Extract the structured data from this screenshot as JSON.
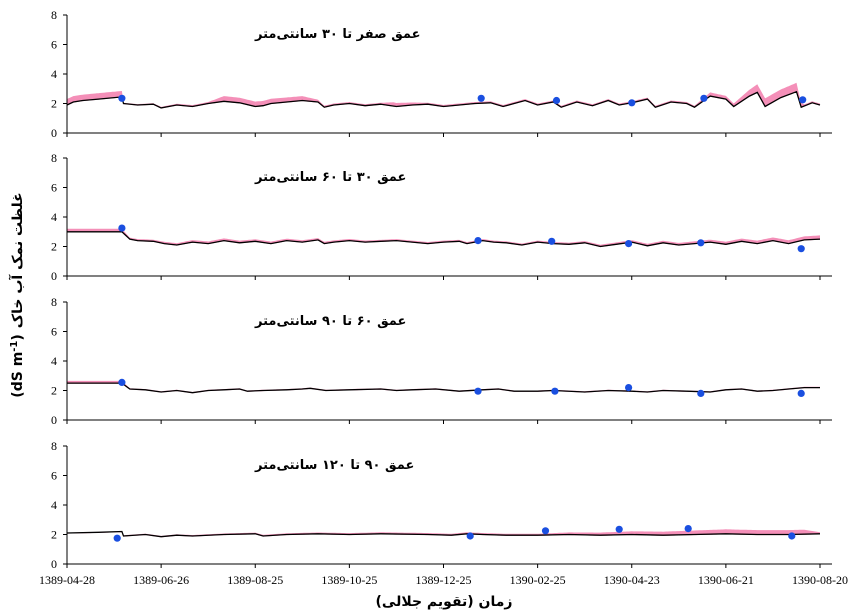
{
  "chart_data": {
    "type": "line",
    "xlabel": "زمان (تقویم جلالی)",
    "ylabel": "غلظت نمک آب خاک",
    "ylabel_unit": "(dS m",
    "ylabel_unit_sup": "-1",
    "ylabel_unit_close": ")",
    "x_tick_labels": [
      "1389-04-28",
      "1389-06-26",
      "1389-08-25",
      "1389-10-25",
      "1389-12-25",
      "1390-02-25",
      "1390-04-23",
      "1390-06-21",
      "1390-08-20"
    ],
    "x_range_days": [
      0,
      480
    ],
    "ylim": [
      0,
      8
    ],
    "y_ticks": [
      "0",
      "2",
      "4",
      "6",
      "8"
    ],
    "colors": {
      "simulated": "#000000",
      "band": "#f48fb8",
      "observed": "#1a4fe0"
    },
    "panels": [
      {
        "title": "عمق صفر تا ۳۰ سانتی‌متر",
        "simulated": [
          [
            0,
            1.9
          ],
          [
            4,
            2.1
          ],
          [
            10,
            2.2
          ],
          [
            20,
            2.3
          ],
          [
            35,
            2.45
          ],
          [
            36,
            2.0
          ],
          [
            45,
            1.9
          ],
          [
            55,
            1.95
          ],
          [
            60,
            1.7
          ],
          [
            70,
            1.9
          ],
          [
            80,
            1.8
          ],
          [
            90,
            2.0
          ],
          [
            100,
            2.15
          ],
          [
            110,
            2.05
          ],
          [
            120,
            1.8
          ],
          [
            125,
            1.85
          ],
          [
            130,
            2.0
          ],
          [
            140,
            2.1
          ],
          [
            150,
            2.2
          ],
          [
            160,
            2.1
          ],
          [
            164,
            1.75
          ],
          [
            170,
            1.9
          ],
          [
            180,
            2.0
          ],
          [
            190,
            1.85
          ],
          [
            200,
            1.95
          ],
          [
            210,
            1.8
          ],
          [
            220,
            1.9
          ],
          [
            230,
            1.95
          ],
          [
            240,
            1.8
          ],
          [
            250,
            1.9
          ],
          [
            260,
            2.0
          ],
          [
            270,
            2.05
          ],
          [
            278,
            1.8
          ],
          [
            285,
            2.0
          ],
          [
            292,
            2.2
          ],
          [
            300,
            1.9
          ],
          [
            310,
            2.1
          ],
          [
            315,
            1.75
          ],
          [
            325,
            2.1
          ],
          [
            335,
            1.85
          ],
          [
            345,
            2.2
          ],
          [
            352,
            1.9
          ],
          [
            360,
            2.05
          ],
          [
            370,
            2.3
          ],
          [
            375,
            1.75
          ],
          [
            385,
            2.1
          ],
          [
            395,
            2.0
          ],
          [
            400,
            1.75
          ],
          [
            410,
            2.5
          ],
          [
            420,
            2.3
          ],
          [
            425,
            1.8
          ],
          [
            435,
            2.5
          ],
          [
            440,
            2.75
          ],
          [
            445,
            1.8
          ],
          [
            455,
            2.4
          ],
          [
            465,
            2.8
          ],
          [
            468,
            1.75
          ],
          [
            475,
            2.05
          ],
          [
            480,
            1.9
          ]
        ],
        "band_extra": [
          [
            0,
            0.4
          ],
          [
            35,
            0.4
          ],
          [
            36,
            0.05
          ],
          [
            90,
            0.1
          ],
          [
            100,
            0.35
          ],
          [
            150,
            0.3
          ],
          [
            164,
            0.1
          ],
          [
            200,
            0.1
          ],
          [
            208,
            0.25
          ],
          [
            230,
            0.1
          ],
          [
            300,
            0.1
          ],
          [
            400,
            0.1
          ],
          [
            410,
            0.25
          ],
          [
            425,
            0.2
          ],
          [
            440,
            0.55
          ],
          [
            455,
            0.55
          ],
          [
            465,
            0.6
          ],
          [
            470,
            0.1
          ],
          [
            480,
            0.1
          ]
        ],
        "observed": [
          [
            35,
            2.35
          ],
          [
            264,
            2.35
          ],
          [
            312,
            2.2
          ],
          [
            360,
            2.05
          ],
          [
            406,
            2.35
          ],
          [
            469,
            2.25
          ]
        ]
      },
      {
        "title": "عمق ۳۰ تا ۶۰ سانتی‌متر",
        "simulated": [
          [
            0,
            3.0
          ],
          [
            35,
            3.0
          ],
          [
            40,
            2.5
          ],
          [
            45,
            2.4
          ],
          [
            55,
            2.35
          ],
          [
            62,
            2.2
          ],
          [
            70,
            2.1
          ],
          [
            80,
            2.3
          ],
          [
            90,
            2.2
          ],
          [
            100,
            2.4
          ],
          [
            110,
            2.25
          ],
          [
            120,
            2.35
          ],
          [
            130,
            2.2
          ],
          [
            140,
            2.4
          ],
          [
            150,
            2.3
          ],
          [
            160,
            2.45
          ],
          [
            164,
            2.2
          ],
          [
            170,
            2.3
          ],
          [
            180,
            2.4
          ],
          [
            190,
            2.3
          ],
          [
            200,
            2.35
          ],
          [
            210,
            2.4
          ],
          [
            220,
            2.3
          ],
          [
            230,
            2.2
          ],
          [
            240,
            2.3
          ],
          [
            250,
            2.35
          ],
          [
            255,
            2.2
          ],
          [
            265,
            2.4
          ],
          [
            272,
            2.3
          ],
          [
            280,
            2.25
          ],
          [
            290,
            2.1
          ],
          [
            300,
            2.3
          ],
          [
            310,
            2.2
          ],
          [
            320,
            2.15
          ],
          [
            330,
            2.25
          ],
          [
            340,
            2.0
          ],
          [
            350,
            2.15
          ],
          [
            360,
            2.3
          ],
          [
            370,
            2.05
          ],
          [
            380,
            2.25
          ],
          [
            390,
            2.1
          ],
          [
            400,
            2.2
          ],
          [
            410,
            2.3
          ],
          [
            420,
            2.15
          ],
          [
            430,
            2.35
          ],
          [
            440,
            2.2
          ],
          [
            450,
            2.4
          ],
          [
            460,
            2.2
          ],
          [
            470,
            2.45
          ],
          [
            480,
            2.5
          ]
        ],
        "band_extra": [
          [
            0,
            0.2
          ],
          [
            35,
            0.2
          ],
          [
            40,
            0.1
          ],
          [
            100,
            0.15
          ],
          [
            200,
            0.1
          ],
          [
            300,
            0.1
          ],
          [
            400,
            0.15
          ],
          [
            480,
            0.25
          ]
        ],
        "observed": [
          [
            35,
            3.25
          ],
          [
            262,
            2.4
          ],
          [
            309,
            2.35
          ],
          [
            358,
            2.2
          ],
          [
            404,
            2.25
          ],
          [
            468,
            1.85
          ]
        ]
      },
      {
        "title": "عمق ۶۰ تا ۹۰ سانتی‌متر",
        "simulated": [
          [
            0,
            2.5
          ],
          [
            35,
            2.5
          ],
          [
            40,
            2.1
          ],
          [
            50,
            2.05
          ],
          [
            60,
            1.9
          ],
          [
            70,
            2.0
          ],
          [
            80,
            1.85
          ],
          [
            90,
            2.0
          ],
          [
            100,
            2.05
          ],
          [
            110,
            2.1
          ],
          [
            115,
            1.95
          ],
          [
            125,
            2.0
          ],
          [
            140,
            2.05
          ],
          [
            150,
            2.1
          ],
          [
            155,
            2.15
          ],
          [
            165,
            2.0
          ],
          [
            180,
            2.05
          ],
          [
            200,
            2.1
          ],
          [
            210,
            2.0
          ],
          [
            220,
            2.05
          ],
          [
            235,
            2.1
          ],
          [
            250,
            1.95
          ],
          [
            265,
            2.05
          ],
          [
            275,
            2.1
          ],
          [
            285,
            1.95
          ],
          [
            300,
            1.95
          ],
          [
            310,
            2.0
          ],
          [
            330,
            1.9
          ],
          [
            345,
            2.0
          ],
          [
            360,
            1.95
          ],
          [
            370,
            1.9
          ],
          [
            380,
            2.0
          ],
          [
            395,
            1.95
          ],
          [
            410,
            1.9
          ],
          [
            420,
            2.05
          ],
          [
            430,
            2.1
          ],
          [
            440,
            1.95
          ],
          [
            450,
            2.0
          ],
          [
            460,
            2.1
          ],
          [
            470,
            2.2
          ],
          [
            480,
            2.2
          ]
        ],
        "band_extra": [
          [
            0,
            0.15
          ],
          [
            35,
            0.15
          ],
          [
            40,
            0.05
          ],
          [
            480,
            0.05
          ]
        ],
        "observed": [
          [
            35,
            2.55
          ],
          [
            262,
            1.95
          ],
          [
            311,
            1.95
          ],
          [
            358,
            2.2
          ],
          [
            404,
            1.8
          ],
          [
            468,
            1.8
          ]
        ]
      },
      {
        "title": "عمق ۹۰ تا ۱۲۰ سانتی‌متر",
        "simulated": [
          [
            0,
            2.1
          ],
          [
            20,
            2.15
          ],
          [
            35,
            2.2
          ],
          [
            36,
            1.9
          ],
          [
            50,
            2.0
          ],
          [
            60,
            1.85
          ],
          [
            70,
            1.95
          ],
          [
            80,
            1.9
          ],
          [
            100,
            2.0
          ],
          [
            120,
            2.05
          ],
          [
            125,
            1.9
          ],
          [
            140,
            2.0
          ],
          [
            160,
            2.05
          ],
          [
            180,
            2.0
          ],
          [
            200,
            2.05
          ],
          [
            230,
            2.0
          ],
          [
            245,
            1.95
          ],
          [
            255,
            2.05
          ],
          [
            265,
            2.0
          ],
          [
            280,
            1.95
          ],
          [
            300,
            1.95
          ],
          [
            320,
            2.0
          ],
          [
            340,
            1.95
          ],
          [
            360,
            2.0
          ],
          [
            380,
            1.95
          ],
          [
            400,
            2.0
          ],
          [
            420,
            2.05
          ],
          [
            440,
            2.0
          ],
          [
            460,
            2.0
          ],
          [
            480,
            2.05
          ]
        ],
        "band_extra": [
          [
            0,
            0.0
          ],
          [
            35,
            0.0
          ],
          [
            36,
            0.05
          ],
          [
            200,
            0.1
          ],
          [
            300,
            0.1
          ],
          [
            350,
            0.2
          ],
          [
            420,
            0.3
          ],
          [
            470,
            0.3
          ],
          [
            480,
            0.1
          ]
        ],
        "observed": [
          [
            32,
            1.75
          ],
          [
            257,
            1.9
          ],
          [
            305,
            2.25
          ],
          [
            352,
            2.35
          ],
          [
            396,
            2.4
          ],
          [
            462,
            1.9
          ]
        ]
      }
    ]
  }
}
